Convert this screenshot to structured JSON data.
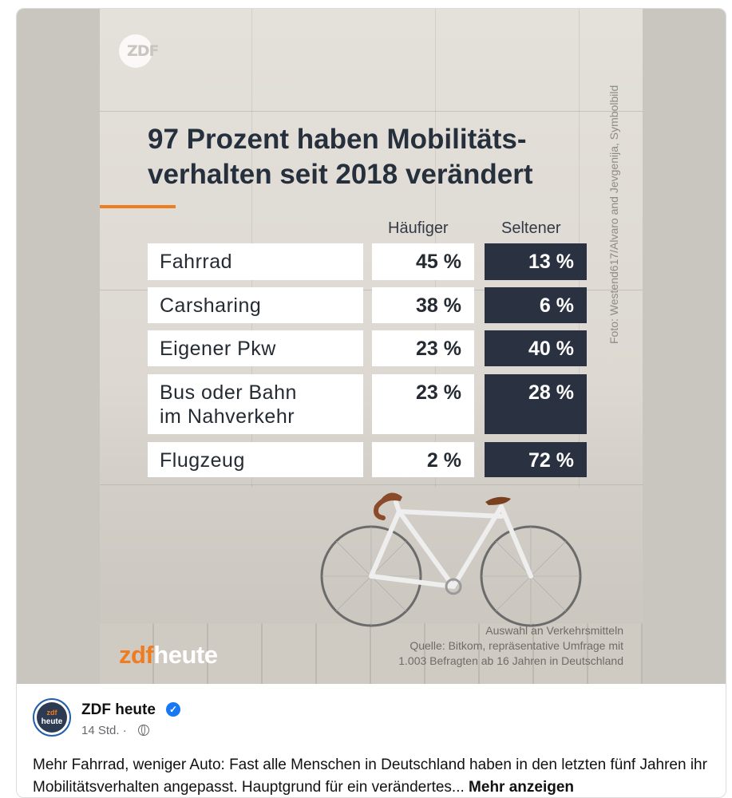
{
  "graphic": {
    "logo_text": "ZDF",
    "photo_credit": "Foto: Westend617/Alvaro and Jevgenija, Symbolbild",
    "headline_line1": "97 Prozent haben Mobilitäts-",
    "headline_line2": "verhalten seit 2018 verändert",
    "col_more": "Häufiger",
    "col_less": "Seltener",
    "rows": [
      {
        "label": "Fahrrad",
        "more": "45 %",
        "less": "13 %"
      },
      {
        "label": "Carsharing",
        "more": "38 %",
        "less": "6 %"
      },
      {
        "label": "Eigener Pkw",
        "more": "23 %",
        "less": "40 %"
      },
      {
        "label_line1": "Bus oder Bahn",
        "label_line2": "im Nahverkehr",
        "more": "23 %",
        "less": "28 %"
      },
      {
        "label": "Flugzeug",
        "more": "2 %",
        "less": "72 %"
      }
    ],
    "source_line1": "Auswahl an Verkehrsmitteln",
    "source_line2": "Quelle: Bitkom, repräsentative Umfrage mit",
    "source_line3": "1.003 Befragten ab 16 Jahren in Deutschland",
    "brand_zdf": "zdf",
    "brand_heute": "heute",
    "accent_color": "#f07c22",
    "dark_color": "#2a3140"
  },
  "post": {
    "avatar_line1": "zdf",
    "avatar_line2": "heute",
    "page_name": "ZDF heute",
    "verified_icon": "✓",
    "time": "14 Std. ·",
    "text": "Mehr Fahrrad, weniger Auto: Fast alle Menschen in Deutschland haben in den letzten fünf Jahren ihr Mobilitätsverhalten angepasst. Hauptgrund für ein verändertes...",
    "more_label": "Mehr anzeigen"
  }
}
